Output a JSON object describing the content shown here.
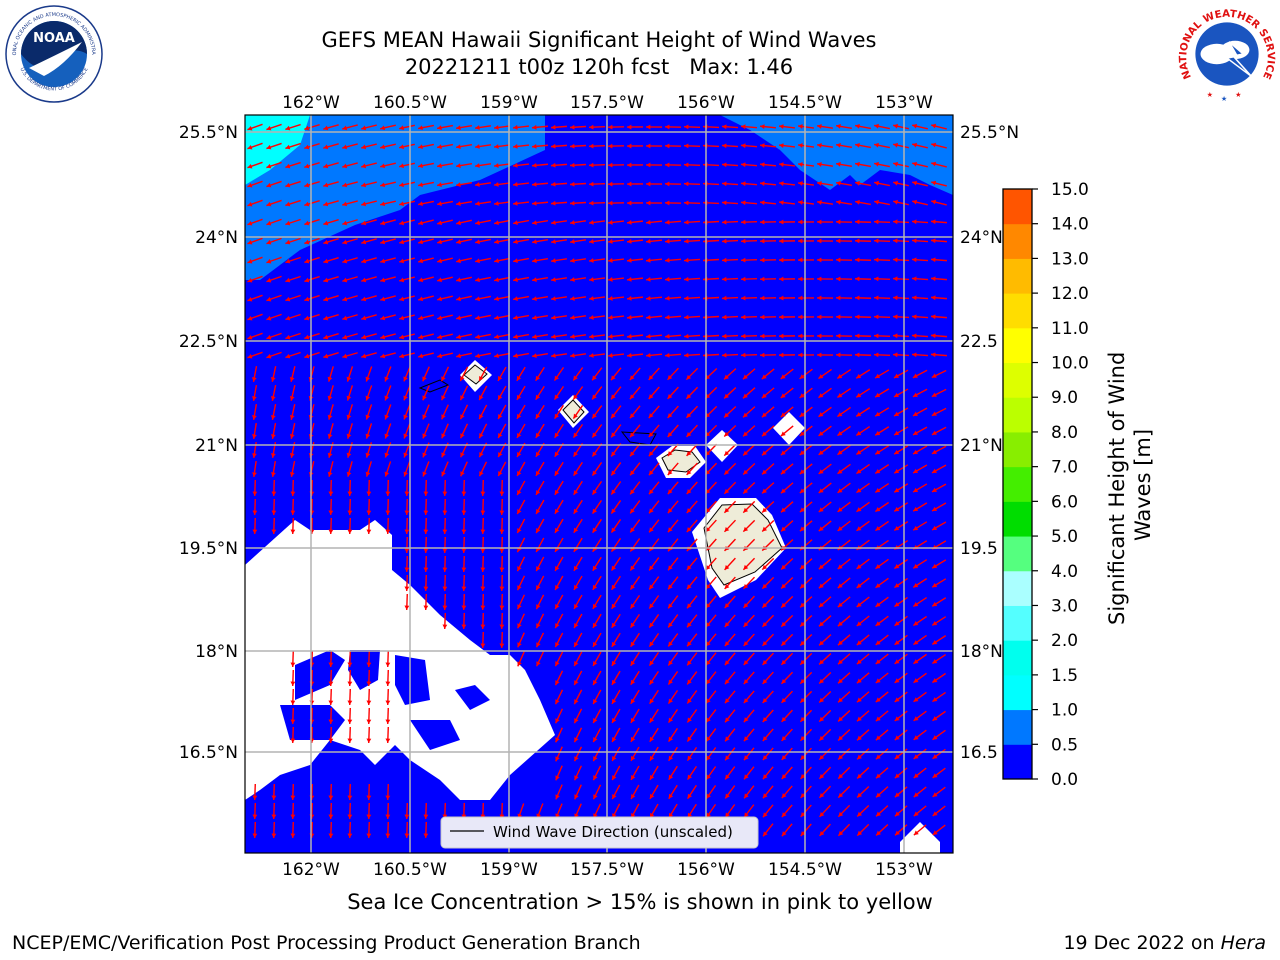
{
  "title": {
    "line1": "GEFS MEAN Hawaii Significant Height of Wind Waves",
    "line2": "20221211 t00z 120h fcst   Max: 1.46"
  },
  "map": {
    "lon_ticks": [
      "162°W",
      "160.5°W",
      "159°W",
      "157.5°W",
      "156°W",
      "154.5°W",
      "153°W"
    ],
    "lat_ticks": [
      "25.5°N",
      "24°N",
      "22.5°N",
      "21°N",
      "19.5°N",
      "18°N",
      "16.5°N"
    ],
    "lat_ticks_right": [
      "25.5°N",
      "24°N",
      "22.5",
      "21°N",
      "19.5",
      "18°N",
      "16.5"
    ],
    "lon_range": [
      "163°W",
      "152.3°W"
    ],
    "lat_range": [
      "15.3°N",
      "25.8°N"
    ],
    "field": "significant height of wind waves",
    "dominant_wave_height_class": "0.0–0.5",
    "arrow_color": "#ff0000",
    "land_color": "#eeecd8",
    "masked_color": "#ffffff",
    "legend_label": "Wind Wave Direction (unscaled)"
  },
  "colorbar": {
    "label_line1": "Significant Height of Wind",
    "label_line2": "Waves [m]",
    "ticks": [
      "0.0",
      "0.5",
      "1.0",
      "1.5",
      "2.0",
      "3.0",
      "4.0",
      "5.0",
      "6.0",
      "7.0",
      "8.0",
      "9.0",
      "10.0",
      "11.0",
      "12.0",
      "13.0",
      "14.0",
      "15.0"
    ],
    "colors": [
      "#0000ff",
      "#0078ff",
      "#00ffff",
      "#00ffee",
      "#54ffff",
      "#aaffff",
      "#55ff7f",
      "#00dd00",
      "#44ee00",
      "#88ee00",
      "#bbff00",
      "#ddff00",
      "#ffff00",
      "#ffdd00",
      "#ffbb00",
      "#ff8800",
      "#ff5500",
      "#ff2200",
      "#ff0000"
    ]
  },
  "logos": {
    "noaa_text": "NOAA",
    "noaa_ring": "NATIONAL OCEANIC AND ATMOSPHERIC ADMINISTRATION",
    "noaa_ring_bottom": "U.S. DEPARTMENT OF COMMERCE",
    "nws_ring": "NATIONAL WEATHER SERVICE"
  },
  "subtitle": "Sea Ice Concentration > 15% is shown in pink to yellow",
  "footer": {
    "left": "NCEP/EMC/Verification Post Processing Product Generation Branch",
    "right_prefix": "19 Dec 2022 on ",
    "right_host": "Hera"
  }
}
